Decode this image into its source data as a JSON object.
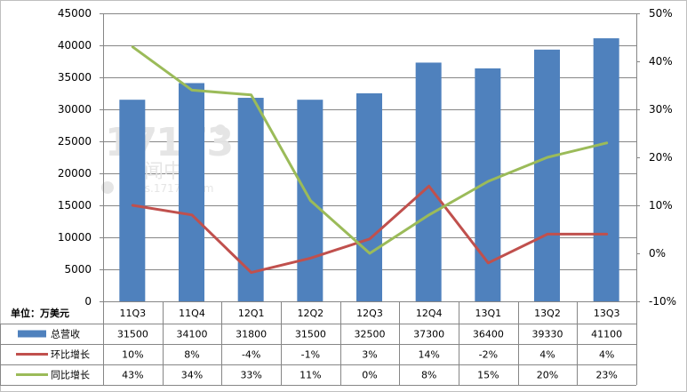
{
  "chart_data": {
    "type": "bar",
    "categories": [
      "11Q3",
      "11Q4",
      "12Q1",
      "12Q2",
      "12Q3",
      "12Q4",
      "13Q1",
      "13Q2",
      "13Q3"
    ],
    "unit_label": "单位：万美元",
    "ylim_left": [
      0,
      45000
    ],
    "left_ticks": [
      "0",
      "5000",
      "10000",
      "15000",
      "20000",
      "25000",
      "30000",
      "35000",
      "40000",
      "45000"
    ],
    "ylim_right": [
      -10,
      50
    ],
    "right_ticks": [
      "-10%",
      "0%",
      "10%",
      "20%",
      "30%",
      "40%",
      "50%"
    ],
    "grid": true,
    "legend_placement": "data table rows below the chart",
    "watermark": {
      "logo": "17173",
      "line1": "新闻中心",
      "line2": "news.17173.com"
    },
    "series": [
      {
        "name": "总营收",
        "kind": "bar",
        "axis": "left",
        "color": "#4f81bd",
        "values": [
          31500,
          34100,
          31800,
          31500,
          32500,
          37300,
          36400,
          39330,
          41100
        ],
        "labels": [
          "31500",
          "34100",
          "31800",
          "31500",
          "32500",
          "37300",
          "36400",
          "39330",
          "41100"
        ]
      },
      {
        "name": "环比增长",
        "kind": "line",
        "axis": "right",
        "color": "#c0504d",
        "values": [
          10,
          8,
          -4,
          -1,
          3,
          14,
          -2,
          4,
          4
        ],
        "labels": [
          "10%",
          "8%",
          "-4%",
          "-1%",
          "3%",
          "14%",
          "-2%",
          "4%",
          "4%"
        ]
      },
      {
        "name": "同比增长",
        "kind": "line",
        "axis": "right",
        "color": "#9bbb59",
        "values": [
          43,
          34,
          33,
          11,
          0,
          8,
          15,
          20,
          23
        ],
        "labels": [
          "43%",
          "34%",
          "33%",
          "11%",
          "0%",
          "8%",
          "15%",
          "20%",
          "23%"
        ]
      }
    ]
  }
}
